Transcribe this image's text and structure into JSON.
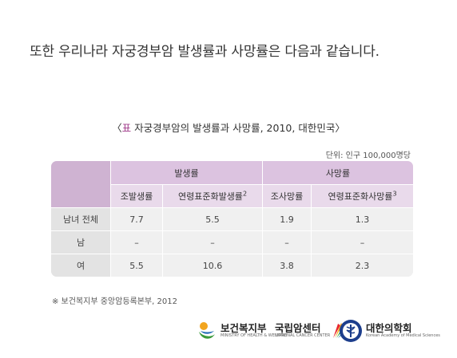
{
  "intro_text": "또한 우리나라 자궁경부암 발생률과 사망률은 다음과 같습니다.",
  "caption": {
    "open": "〈",
    "tag": "표",
    "text": " 자궁경부암의 발생률과 사망률, 2010, 대한민국",
    "close": "〉"
  },
  "unit_note": "단위: 인구 100,000명당",
  "table": {
    "groups": [
      "발생률",
      "사망률"
    ],
    "subheaders": [
      {
        "label": "조발생률",
        "sup": ""
      },
      {
        "label": "연령표준화발생률",
        "sup": "2"
      },
      {
        "label": "조사망률",
        "sup": ""
      },
      {
        "label": "연령표준화사망률",
        "sup": "3"
      }
    ],
    "rows": [
      {
        "label": "남녀 전체",
        "values": [
          "7.7",
          "5.5",
          "1.9",
          "1.3"
        ]
      },
      {
        "label": "남",
        "values": [
          "–",
          "–",
          "–",
          "–"
        ]
      },
      {
        "label": "여",
        "values": [
          "5.5",
          "10.6",
          "3.8",
          "2.3"
        ]
      }
    ]
  },
  "source_note": "※ 보건복지부 중앙암등록본부, 2012",
  "logos": [
    {
      "name": "보건복지부",
      "sub": "MINISTRY OF HEALTH & WELFARE",
      "icon": "mohw-logo-icon"
    },
    {
      "name": "국립암센터",
      "sub": "NATIONAL CANCER CENTER",
      "icon": "ncc-logo-icon"
    },
    {
      "name": "대한의학회",
      "sub": "Korean Academy of Medical Sciences",
      "icon": "kams-logo-icon"
    }
  ],
  "colors": {
    "header_dark": "#cfb3d2",
    "header_mid": "#dcc3e0",
    "header_light": "#e9daeb",
    "row_head": "#e3e3e3",
    "cell": "#f0f0f0",
    "caption_accent": "#a03a8a"
  }
}
